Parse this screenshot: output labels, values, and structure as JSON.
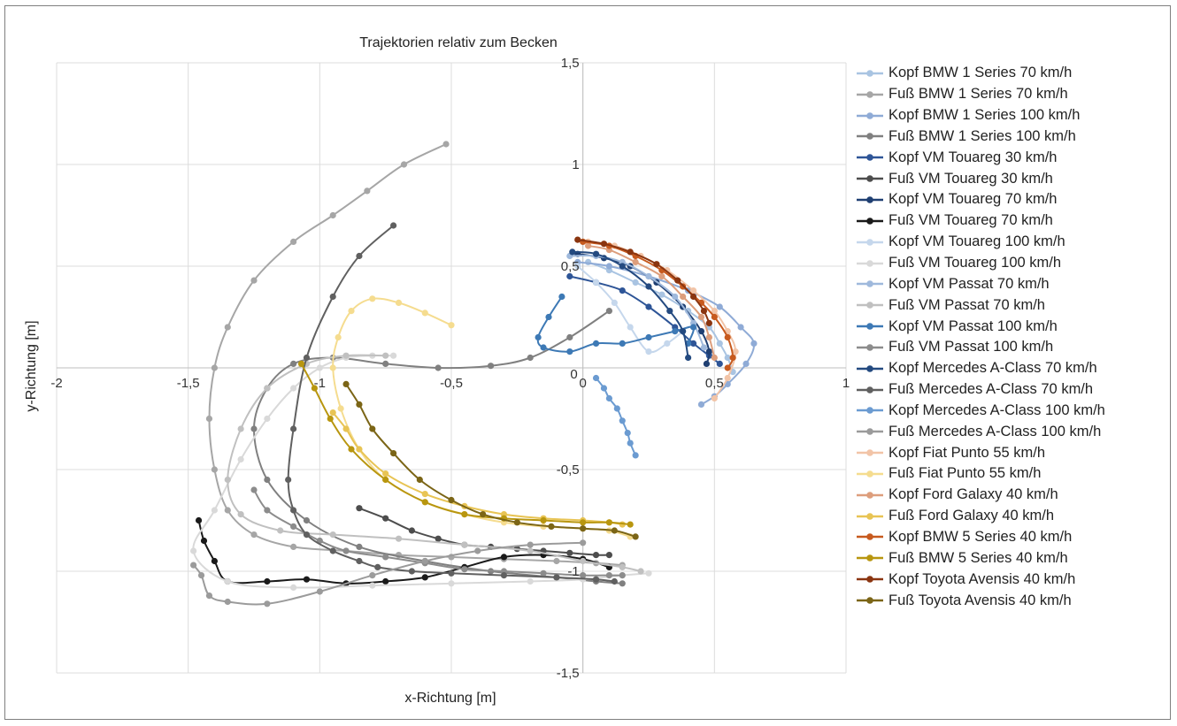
{
  "chart_data": {
    "type": "scatter",
    "title": "Trajektorien relativ zum Becken",
    "xlabel": "x-Richtung [m]",
    "ylabel": "y-Richtung [m]",
    "xlim": [
      -2,
      1
    ],
    "ylim": [
      -1.5,
      1.5
    ],
    "xticks": [
      -2,
      -1.5,
      -1,
      -0.5,
      0,
      0.5,
      1
    ],
    "yticks": [
      -1.5,
      -1,
      -0.5,
      0,
      0.5,
      1,
      1.5
    ],
    "xtick_labels": [
      "-2",
      "-1,5",
      "-1",
      "-0,5",
      "0",
      "0,5",
      "1"
    ],
    "ytick_labels": [
      "-1,5",
      "-1",
      "-0,5",
      "0",
      "0,5",
      "1",
      "1,5"
    ],
    "grid": true,
    "legend_position": "right",
    "series": [
      {
        "name": "Kopf BMW 1 Series 70 km/h",
        "color": "#a9c4e2",
        "x": [
          0.02,
          0.1,
          0.2,
          0.3,
          0.4,
          0.48,
          0.52,
          0.55,
          0.57
        ],
        "y": [
          0.52,
          0.48,
          0.42,
          0.36,
          0.28,
          0.2,
          0.12,
          0.05,
          -0.02
        ]
      },
      {
        "name": "Fuß BMW 1 Series 70 km/h",
        "color": "#a6a6a6",
        "x": [
          -0.52,
          -0.68,
          -0.82,
          -0.95,
          -1.1,
          -1.25,
          -1.35,
          -1.4,
          -1.42,
          -1.4,
          -1.35,
          -1.25,
          -1.1,
          -0.9,
          -0.7,
          -0.5,
          -0.3,
          -0.1,
          0.05,
          0.15
        ],
        "y": [
          1.1,
          1.0,
          0.87,
          0.75,
          0.62,
          0.43,
          0.2,
          0.0,
          -0.25,
          -0.5,
          -0.7,
          -0.82,
          -0.88,
          -0.9,
          -0.92,
          -0.93,
          -0.94,
          -0.95,
          -0.96,
          -0.97
        ]
      },
      {
        "name": "Kopf BMW 1 Series 100 km/h",
        "color": "#8fabd6",
        "x": [
          -0.02,
          0.1,
          0.25,
          0.4,
          0.52,
          0.6,
          0.65,
          0.62,
          0.55,
          0.5,
          0.45
        ],
        "y": [
          0.52,
          0.5,
          0.45,
          0.38,
          0.3,
          0.2,
          0.12,
          0.02,
          -0.08,
          -0.14,
          -0.18
        ]
      },
      {
        "name": "Fuß BMW 1 Series 100 km/h",
        "color": "#808080",
        "x": [
          0.1,
          -0.05,
          -0.2,
          -0.35,
          -0.55,
          -0.75,
          -0.95,
          -1.1,
          -1.2,
          -1.25,
          -1.2,
          -1.05,
          -0.85,
          -0.6,
          -0.35,
          -0.1,
          0.05,
          0.15
        ],
        "y": [
          0.28,
          0.15,
          0.05,
          0.01,
          0.0,
          0.02,
          0.05,
          0.02,
          -0.1,
          -0.3,
          -0.55,
          -0.75,
          -0.88,
          -0.95,
          -1.0,
          -1.03,
          -1.05,
          -1.06
        ]
      },
      {
        "name": "Kopf VM Touareg 30 km/h",
        "color": "#2e5597",
        "x": [
          -0.05,
          0.05,
          0.15,
          0.25,
          0.35,
          0.42,
          0.48,
          0.52
        ],
        "y": [
          0.45,
          0.42,
          0.38,
          0.3,
          0.2,
          0.12,
          0.06,
          0.02
        ]
      },
      {
        "name": "Fuß VM  Touareg 30 km/h",
        "color": "#4d4d4d",
        "x": [
          -0.85,
          -0.75,
          -0.65,
          -0.55,
          -0.45,
          -0.35,
          -0.25,
          -0.15,
          -0.05,
          0.05,
          0.1
        ],
        "y": [
          -0.69,
          -0.74,
          -0.8,
          -0.84,
          -0.87,
          -0.88,
          -0.89,
          -0.9,
          -0.91,
          -0.92,
          -0.92
        ]
      },
      {
        "name": "Kopf VM Touareg 70 km/h",
        "color": "#1f3f72",
        "x": [
          -0.02,
          0.08,
          0.18,
          0.28,
          0.38,
          0.45,
          0.48,
          0.47
        ],
        "y": [
          0.56,
          0.54,
          0.5,
          0.42,
          0.3,
          0.18,
          0.08,
          0.02
        ]
      },
      {
        "name": "Fuß VM Touareg 70 km/h",
        "color": "#1a1a1a",
        "x": [
          -1.46,
          -1.44,
          -1.4,
          -1.35,
          -1.2,
          -1.05,
          -0.9,
          -0.75,
          -0.6,
          -0.45,
          -0.3,
          -0.15,
          0.0,
          0.1
        ],
        "y": [
          -0.75,
          -0.85,
          -0.95,
          -1.05,
          -1.05,
          -1.04,
          -1.06,
          -1.05,
          -1.03,
          -0.98,
          -0.93,
          -0.92,
          -0.94,
          -0.98
        ]
      },
      {
        "name": "Kopf VM  Touareg 100 km/h",
        "color": "#c5d7ec",
        "x": [
          -0.02,
          0.05,
          0.12,
          0.18,
          0.25,
          0.32,
          0.38
        ],
        "y": [
          0.5,
          0.42,
          0.32,
          0.2,
          0.08,
          0.12,
          0.18
        ]
      },
      {
        "name": "Fuß VM  Touareg 100 km/h",
        "color": "#d9d9d9",
        "x": [
          -0.72,
          -0.8,
          -0.9,
          -1.0,
          -1.1,
          -1.2,
          -1.3,
          -1.4,
          -1.48,
          -1.35,
          -1.1,
          -0.8,
          -0.5,
          -0.2,
          0.0,
          0.15,
          0.25
        ],
        "y": [
          0.06,
          0.06,
          0.05,
          0.0,
          -0.1,
          -0.25,
          -0.45,
          -0.7,
          -0.9,
          -1.05,
          -1.08,
          -1.07,
          -1.06,
          -1.05,
          -1.04,
          -1.02,
          -1.01
        ]
      },
      {
        "name": "Kopf VM  Passat 70 km/h",
        "color": "#9fb9dc",
        "x": [
          -0.05,
          0.05,
          0.15,
          0.25,
          0.35,
          0.42,
          0.46
        ],
        "y": [
          0.55,
          0.55,
          0.52,
          0.45,
          0.35,
          0.22,
          0.1
        ]
      },
      {
        "name": "Fuß VM  Passat 70 km/h",
        "color": "#c0c0c0",
        "x": [
          -0.75,
          -0.9,
          -1.05,
          -1.2,
          -1.3,
          -1.35,
          -1.3,
          -1.15,
          -0.95,
          -0.7,
          -0.45,
          -0.2,
          0.0,
          0.15,
          0.22
        ],
        "y": [
          0.06,
          0.06,
          0.02,
          -0.1,
          -0.3,
          -0.55,
          -0.72,
          -0.8,
          -0.82,
          -0.84,
          -0.87,
          -0.9,
          -0.95,
          -0.98,
          -1.0
        ]
      },
      {
        "name": "Kopf VM  Passat 100 km/h",
        "color": "#3d79b5",
        "x": [
          -0.08,
          -0.13,
          -0.17,
          -0.15,
          -0.05,
          0.05,
          0.15,
          0.25,
          0.35,
          0.42,
          0.4
        ],
        "y": [
          0.35,
          0.25,
          0.15,
          0.1,
          0.08,
          0.12,
          0.12,
          0.15,
          0.18,
          0.2,
          0.12
        ]
      },
      {
        "name": "Fuß VM Passat 100 km/h",
        "color": "#8c8c8c",
        "x": [
          -1.25,
          -1.2,
          -1.1,
          -1.0,
          -0.9,
          -0.75,
          -0.6,
          -0.45,
          -0.3,
          -0.15,
          0.0,
          0.1,
          0.15
        ],
        "y": [
          -0.6,
          -0.7,
          -0.78,
          -0.85,
          -0.9,
          -0.93,
          -0.96,
          -0.99,
          -1.0,
          -1.01,
          -1.02,
          -1.02,
          -1.02
        ]
      },
      {
        "name": "Kopf Mercedes A-Class 70 km/h",
        "color": "#244a80",
        "x": [
          -0.04,
          0.05,
          0.15,
          0.25,
          0.33,
          0.38,
          0.4
        ],
        "y": [
          0.57,
          0.56,
          0.5,
          0.4,
          0.28,
          0.18,
          0.05
        ]
      },
      {
        "name": "Fuß Mercedes A-Class 70 km/h",
        "color": "#606060",
        "x": [
          -0.72,
          -0.85,
          -0.95,
          -1.05,
          -1.1,
          -1.12,
          -1.1,
          -1.05,
          -0.95,
          -0.85,
          -0.78,
          -0.65,
          -0.5,
          -0.3,
          -0.1,
          0.05,
          0.12
        ],
        "y": [
          0.7,
          0.55,
          0.35,
          0.05,
          -0.3,
          -0.55,
          -0.7,
          -0.82,
          -0.9,
          -0.95,
          -0.98,
          -1.0,
          -1.01,
          -1.02,
          -1.03,
          -1.04,
          -1.05
        ]
      },
      {
        "name": "Kopf Mercedes A-Class 100 km/h",
        "color": "#6b9bd1",
        "x": [
          0.05,
          0.08,
          0.1,
          0.13,
          0.15,
          0.17,
          0.18,
          0.2
        ],
        "y": [
          -0.05,
          -0.1,
          -0.15,
          -0.2,
          -0.26,
          -0.32,
          -0.37,
          -0.43
        ]
      },
      {
        "name": "Fuß Mercedes A-Class 100 km/h",
        "color": "#9b9b9b",
        "x": [
          -1.48,
          -1.45,
          -1.42,
          -1.35,
          -1.2,
          -1.0,
          -0.8,
          -0.6,
          -0.4,
          -0.2,
          0.0
        ],
        "y": [
          -0.97,
          -1.02,
          -1.12,
          -1.15,
          -1.16,
          -1.1,
          -1.02,
          -0.95,
          -0.9,
          -0.87,
          -0.86
        ]
      },
      {
        "name": "Kopf Fiat Punto 55 km/h",
        "color": "#f2c4a7",
        "x": [
          0.02,
          0.12,
          0.22,
          0.32,
          0.42,
          0.5,
          0.55,
          0.58,
          0.55,
          0.5
        ],
        "y": [
          0.62,
          0.6,
          0.55,
          0.48,
          0.38,
          0.28,
          0.18,
          0.08,
          -0.05,
          -0.15
        ]
      },
      {
        "name": "Fuß Fiat Punto 55 km/h",
        "color": "#f5dc8f",
        "x": [
          -0.5,
          -0.6,
          -0.7,
          -0.8,
          -0.88,
          -0.93,
          -0.95,
          -0.92,
          -0.85,
          -0.75,
          -0.6,
          -0.45,
          -0.3,
          -0.15,
          0.0,
          0.1,
          0.18
        ],
        "y": [
          0.21,
          0.27,
          0.32,
          0.34,
          0.28,
          0.15,
          0.0,
          -0.2,
          -0.4,
          -0.55,
          -0.66,
          -0.72,
          -0.76,
          -0.78,
          -0.79,
          -0.8,
          -0.83
        ]
      },
      {
        "name": "Kopf Ford Galaxy 40 km/h",
        "color": "#dd9e7c",
        "x": [
          0.02,
          0.1,
          0.2,
          0.3,
          0.38,
          0.45,
          0.48,
          0.5
        ],
        "y": [
          0.6,
          0.58,
          0.52,
          0.45,
          0.35,
          0.25,
          0.15,
          0.05
        ]
      },
      {
        "name": "Fuß Ford Galaxy 40 km/h",
        "color": "#e8c454",
        "x": [
          -0.95,
          -0.9,
          -0.85,
          -0.75,
          -0.6,
          -0.45,
          -0.3,
          -0.15,
          0.0,
          0.1,
          0.15
        ],
        "y": [
          -0.22,
          -0.3,
          -0.4,
          -0.52,
          -0.62,
          -0.68,
          -0.72,
          -0.74,
          -0.75,
          -0.76,
          -0.77
        ]
      },
      {
        "name": "Kopf BMW 5 Series 40 km/h",
        "color": "#c75a1e",
        "x": [
          0.0,
          0.1,
          0.2,
          0.3,
          0.38,
          0.45,
          0.5,
          0.55,
          0.57,
          0.55
        ],
        "y": [
          0.62,
          0.6,
          0.55,
          0.48,
          0.4,
          0.32,
          0.25,
          0.15,
          0.05,
          0.0
        ]
      },
      {
        "name": "Fuß BMW 5 Series 40 km/h",
        "color": "#b8960f",
        "x": [
          -1.07,
          -1.02,
          -0.96,
          -0.88,
          -0.75,
          -0.6,
          -0.45,
          -0.3,
          -0.15,
          0.0,
          0.1,
          0.18
        ],
        "y": [
          0.02,
          -0.1,
          -0.25,
          -0.4,
          -0.55,
          -0.66,
          -0.72,
          -0.74,
          -0.75,
          -0.76,
          -0.76,
          -0.77
        ]
      },
      {
        "name": "Kopf Toyota Avensis 40 km/h",
        "color": "#8a3510",
        "x": [
          -0.02,
          0.08,
          0.18,
          0.28,
          0.36,
          0.42,
          0.46,
          0.48
        ],
        "y": [
          0.63,
          0.61,
          0.57,
          0.51,
          0.43,
          0.35,
          0.28,
          0.22
        ]
      },
      {
        "name": "Fuß Toyota Avensis 40 km/h",
        "color": "#7b6516",
        "x": [
          -0.9,
          -0.85,
          -0.8,
          -0.72,
          -0.62,
          -0.5,
          -0.38,
          -0.25,
          -0.12,
          0.0,
          0.12,
          0.2
        ],
        "y": [
          -0.08,
          -0.18,
          -0.3,
          -0.42,
          -0.55,
          -0.65,
          -0.72,
          -0.76,
          -0.78,
          -0.79,
          -0.8,
          -0.83
        ]
      }
    ]
  }
}
